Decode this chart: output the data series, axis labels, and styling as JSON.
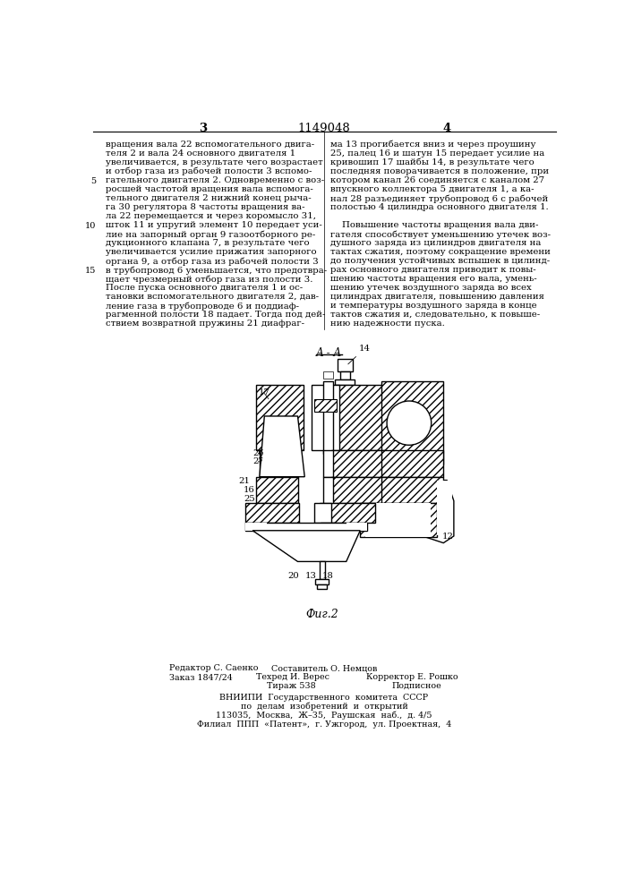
{
  "page_number_center": "1149048",
  "page_number_left": "3",
  "page_number_right": "4",
  "left_column_text": [
    "вращения вала 22 вспомогательного двига-",
    "теля 2 и вала 24 основного двигателя 1",
    "увеличивается, в результате чего возрастает",
    "и отбор газа из рабочей полости 3 вспомо-",
    "гательного двигателя 2. Одновременно с воз-",
    "росшей частотой вращения вала вспомога-",
    "тельного двигателя 2 нижний конец рыча-",
    "га 30 регулятора 8 частоты вращения ва-",
    "ла 22 перемещается и через коромысло 31,",
    "шток 11 и упругий элемент 10 передает уси-",
    "лие на запорный орган 9 газоотборного ре-",
    "дукционного клапана 7, в результате чего",
    "увеличивается усилие прижатия запорного",
    "органа 9, а отбор газа из рабочей полости 3",
    "в трубопровод 6 уменьшается, что предотвра-",
    "щает чрезмерный отбор газа из полости 3.",
    "После пуска основного двигателя 1 и ос-",
    "тановки вспомогательного двигателя 2, дав-",
    "ление газа в трубопроводе 6 и поддиаф-",
    "рагменной полости 18 падает. Тогда под дей-",
    "ствием возвратной пружины 21 диафраг-"
  ],
  "right_column_text": [
    "ма 13 прогибается вниз и через проушину",
    "25, палец 16 и шатун 15 передает усилие на",
    "кривошип 17 шайбы 14, в результате чего",
    "последняя поворачивается в положение, при",
    "котором канал 26 соединяется с каналом 27",
    "впускного коллектора 5 двигателя 1, а ка-",
    "нал 28 разъединяет трубопровод 6 с рабочей",
    "полостью 4 цилиндра основного двигателя 1.",
    "",
    "    Повышение частоты вращения вала дви-",
    "гателя способствует уменьшению утечек воз-",
    "душного заряда из цилиндров двигателя на",
    "тактах сжатия, поэтому сокращение времени",
    "до получения устойчивых вспышек в цилинд-",
    "рах основного двигателя приводит к повы-",
    "шению частоты вращения его вала, умень-",
    "шению утечек воздушного заряда во всех",
    "цилиндрах двигателя, повышению давления",
    "и температуры воздушного заряда в конце",
    "тактов сжатия и, следовательно, к повыше-",
    "нию надежности пуска."
  ],
  "figure_label": "Фиг.2",
  "section_label": "А - А",
  "bg_color": "#ffffff",
  "text_color": "#000000"
}
